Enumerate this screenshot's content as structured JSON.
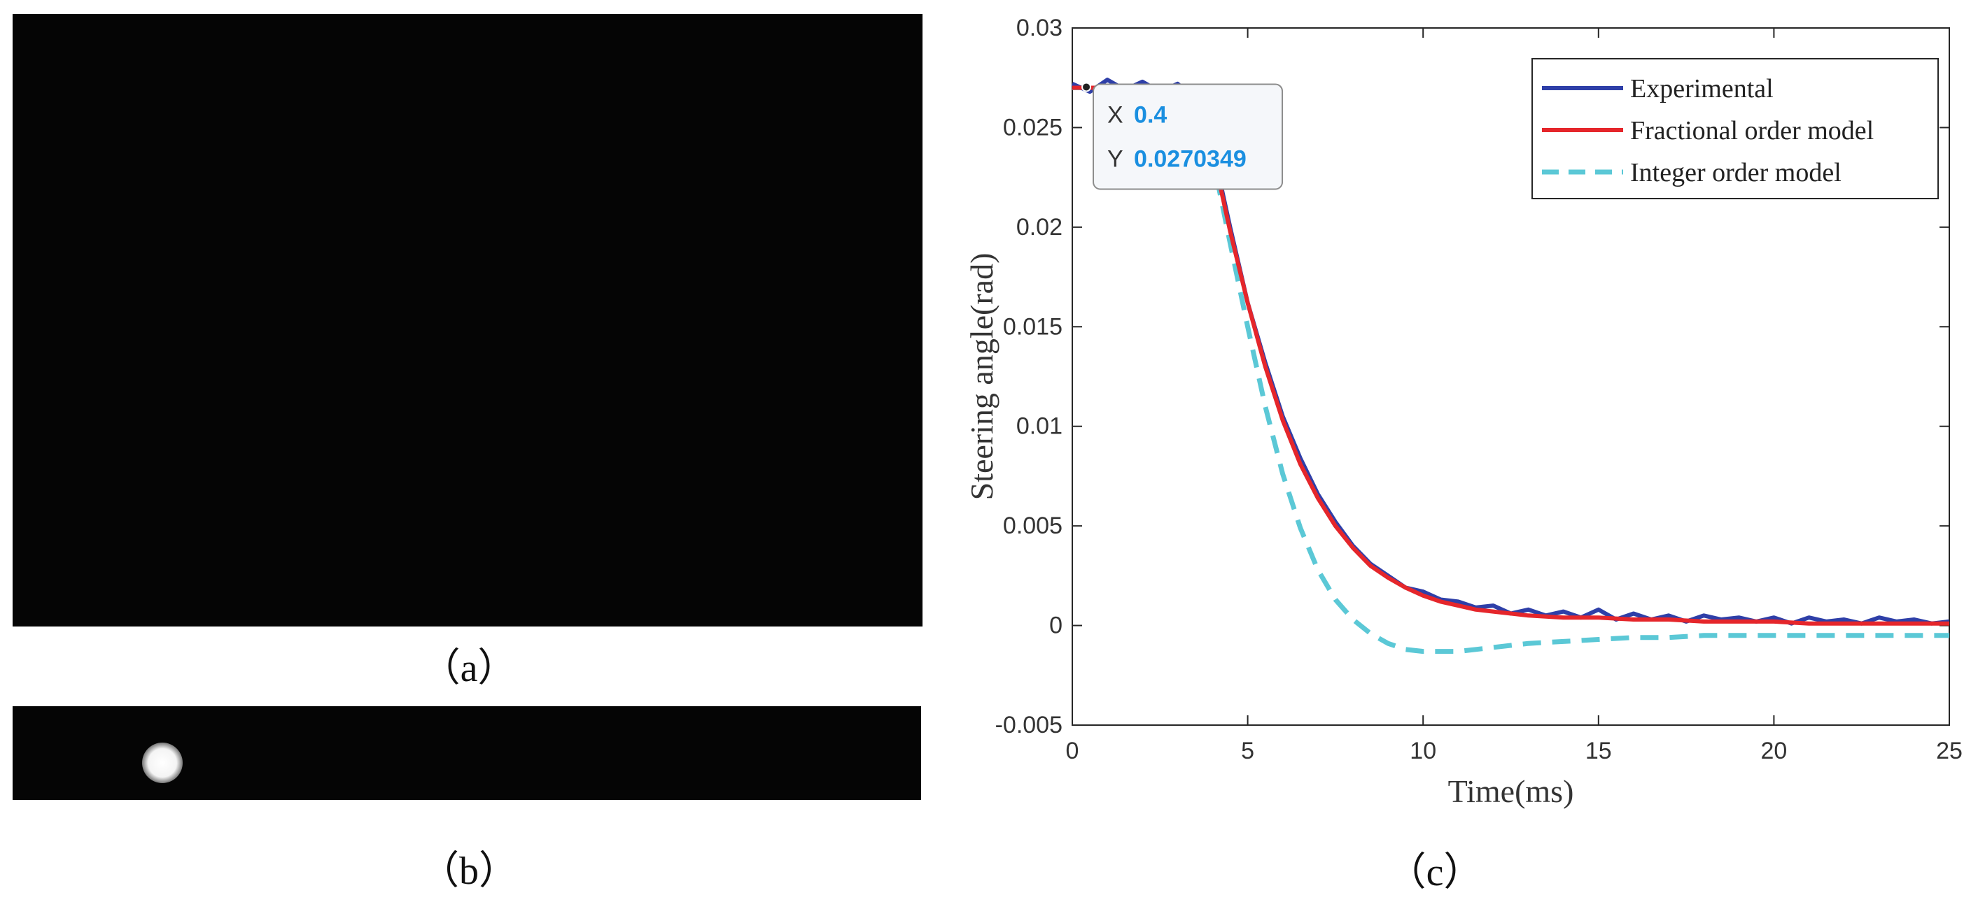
{
  "panels": {
    "a": {
      "caption": "（a）"
    },
    "b": {
      "caption": "（b）"
    },
    "c": {
      "caption": "（c）"
    }
  },
  "chart_data": {
    "type": "line",
    "title": "",
    "xlabel": "Time(ms)",
    "ylabel": "Steering angle(rad)",
    "xlim": [
      0,
      25
    ],
    "ylim": [
      -0.005,
      0.03
    ],
    "xticks": [
      0,
      5,
      10,
      15,
      20,
      25
    ],
    "xtick_labels": [
      "0",
      "5",
      "10",
      "15",
      "20",
      "25"
    ],
    "yticks": [
      -0.005,
      0,
      0.005,
      0.01,
      0.015,
      0.02,
      0.025,
      0.03
    ],
    "ytick_labels": [
      "-0.005",
      "0",
      "0.005",
      "0.01",
      "0.015",
      "0.02",
      "0.025",
      "0.03"
    ],
    "grid": false,
    "legend_position": "top-right",
    "series": [
      {
        "name": "Experimental",
        "color": "#2e3fa8",
        "style": "solid",
        "x": [
          0,
          0.5,
          1,
          1.5,
          2,
          2.5,
          3,
          3.5,
          4,
          4.5,
          5,
          5.5,
          6,
          6.5,
          7,
          7.5,
          8,
          8.5,
          9,
          9.5,
          10,
          10.5,
          11,
          11.5,
          12,
          12.5,
          13,
          13.5,
          14,
          14.5,
          15,
          15.5,
          16,
          16.5,
          17,
          17.5,
          18,
          18.5,
          19,
          19.5,
          20,
          20.5,
          21,
          21.5,
          22,
          22.5,
          23,
          23.5,
          24,
          24.5,
          25
        ],
        "y": [
          0.0272,
          0.0268,
          0.0274,
          0.0269,
          0.0273,
          0.0268,
          0.0272,
          0.0265,
          0.024,
          0.02,
          0.0162,
          0.0132,
          0.0105,
          0.0084,
          0.0066,
          0.0052,
          0.004,
          0.0031,
          0.0025,
          0.0019,
          0.0017,
          0.0013,
          0.0012,
          0.0009,
          0.001,
          0.0006,
          0.0008,
          0.0005,
          0.0007,
          0.0004,
          0.0008,
          0.0003,
          0.0006,
          0.0003,
          0.0005,
          0.0002,
          0.0005,
          0.0003,
          0.0004,
          0.0002,
          0.0004,
          0.0001,
          0.0004,
          0.0002,
          0.0003,
          0.0001,
          0.0004,
          0.0002,
          0.0003,
          0.0001,
          0.0002
        ]
      },
      {
        "name": "Fractional order model",
        "color": "#e5262b",
        "style": "solid",
        "x": [
          0,
          0.5,
          1,
          1.5,
          2,
          2.5,
          3,
          3.5,
          4,
          4.5,
          5,
          5.5,
          6,
          6.5,
          7,
          7.5,
          8,
          8.5,
          9,
          9.5,
          10,
          10.5,
          11,
          11.5,
          12,
          13,
          14,
          15,
          16,
          17,
          18,
          19,
          20,
          21,
          22,
          23,
          24,
          25
        ],
        "y": [
          0.027,
          0.027,
          0.027,
          0.027,
          0.027,
          0.027,
          0.027,
          0.0262,
          0.0238,
          0.0198,
          0.0162,
          0.013,
          0.0103,
          0.0081,
          0.0064,
          0.005,
          0.0039,
          0.003,
          0.0024,
          0.0019,
          0.0015,
          0.0012,
          0.001,
          0.0008,
          0.0007,
          0.0005,
          0.0004,
          0.0004,
          0.0003,
          0.0003,
          0.0002,
          0.0002,
          0.0002,
          0.0001,
          0.0001,
          0.0001,
          0.0001,
          0.0001
        ]
      },
      {
        "name": "Integer order model",
        "color": "#5bc8d6",
        "style": "dashed",
        "x": [
          0,
          0.5,
          1,
          1.5,
          2,
          2.5,
          3,
          3.5,
          4,
          4.5,
          5,
          5.5,
          6,
          6.5,
          7,
          7.5,
          8,
          8.5,
          9,
          9.5,
          10,
          10.5,
          11,
          11.5,
          12,
          13,
          14,
          15,
          16,
          17,
          18,
          19,
          20,
          21,
          22,
          23,
          24,
          25
        ],
        "y": [
          0.027,
          0.027,
          0.027,
          0.027,
          0.027,
          0.027,
          0.027,
          0.0262,
          0.0235,
          0.0192,
          0.015,
          0.011,
          0.0076,
          0.0049,
          0.0028,
          0.0013,
          0.0003,
          -0.0004,
          -0.0009,
          -0.0012,
          -0.0013,
          -0.0013,
          -0.0013,
          -0.0012,
          -0.0011,
          -0.0009,
          -0.0008,
          -0.0007,
          -0.0006,
          -0.0006,
          -0.0005,
          -0.0005,
          -0.0005,
          -0.0005,
          -0.0005,
          -0.0005,
          -0.0005,
          -0.0005
        ]
      }
    ],
    "datatip": {
      "x_label": "X",
      "x_value": "0.4",
      "y_label": "Y",
      "y_value": "0.0270349",
      "px": 0.4,
      "py": 0.0270349
    }
  }
}
